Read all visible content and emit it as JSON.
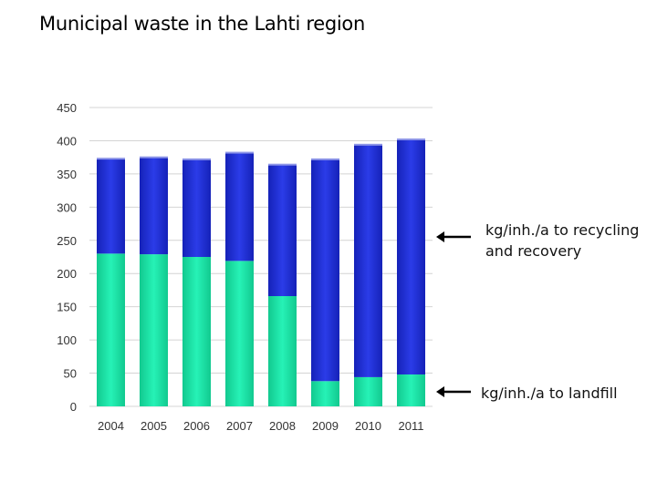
{
  "title": "Municipal waste in the Lahti region",
  "legend": {
    "recycling": "kg/inh./a to recycling and recovery",
    "landfill": "kg/inh./a to landfill"
  },
  "colors": {
    "recycling": "#1f2fd6",
    "landfill": "#1de5a8",
    "grid": "#d4d4d4",
    "axis_text": "#333333"
  },
  "chart_data": {
    "type": "bar",
    "stacked": true,
    "categories": [
      "2004",
      "2005",
      "2006",
      "2007",
      "2008",
      "2009",
      "2010",
      "2011"
    ],
    "series": [
      {
        "name": "kg/inh./a to landfill",
        "values": [
          230,
          229,
          225,
          219,
          166,
          38,
          44,
          48
        ]
      },
      {
        "name": "kg/inh./a to recycling and recovery",
        "values": [
          143,
          146,
          147,
          163,
          198,
          334,
          350,
          354
        ]
      }
    ],
    "yticks": [
      0,
      50,
      100,
      150,
      200,
      250,
      300,
      350,
      400,
      450
    ],
    "ylim": [
      0,
      450
    ],
    "grid": true,
    "legend_placement": "right"
  }
}
